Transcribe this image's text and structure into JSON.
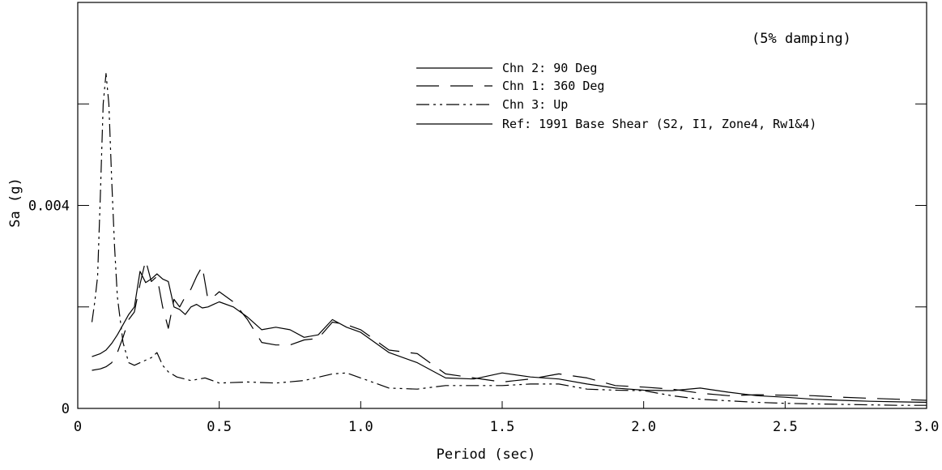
{
  "chart_data": {
    "type": "line",
    "title": "",
    "annotation": "(5% damping)",
    "xlabel": "Period (sec)",
    "ylabel": "Sa (g)",
    "xlim": [
      0,
      3.0
    ],
    "ylim": [
      0,
      0.008
    ],
    "x_ticks": [
      0,
      0.5,
      1.0,
      1.5,
      2.0,
      2.5,
      3.0
    ],
    "x_tick_labels": [
      "0",
      "0.5",
      "1.0",
      "1.5",
      "2.0",
      "2.5",
      "3.0"
    ],
    "y_ticks": [
      0,
      0.004
    ],
    "y_tick_labels": [
      "0",
      "0.004"
    ],
    "grid": false,
    "legend_position": "top-right",
    "series": [
      {
        "name": "Chn 2: 90 Deg",
        "style": "solid",
        "color": "#000000",
        "x": [
          0.05,
          0.08,
          0.1,
          0.12,
          0.14,
          0.16,
          0.18,
          0.2,
          0.22,
          0.24,
          0.26,
          0.28,
          0.3,
          0.32,
          0.34,
          0.36,
          0.38,
          0.4,
          0.42,
          0.44,
          0.46,
          0.48,
          0.5,
          0.55,
          0.6,
          0.65,
          0.7,
          0.75,
          0.8,
          0.85,
          0.9,
          0.95,
          1.0,
          1.1,
          1.2,
          1.3,
          1.4,
          1.5,
          1.6,
          1.7,
          1.8,
          1.9,
          2.0,
          2.1,
          2.2,
          2.3,
          2.4,
          2.5,
          2.6,
          2.7,
          2.8,
          2.9,
          3.0
        ],
        "y": [
          0.00102,
          0.00108,
          0.00115,
          0.00128,
          0.00145,
          0.00165,
          0.00185,
          0.002,
          0.0027,
          0.00248,
          0.00255,
          0.00265,
          0.00255,
          0.0025,
          0.002,
          0.00195,
          0.00185,
          0.002,
          0.00205,
          0.00198,
          0.002,
          0.00205,
          0.0021,
          0.002,
          0.0018,
          0.00155,
          0.0016,
          0.00155,
          0.0014,
          0.00145,
          0.00175,
          0.0016,
          0.0015,
          0.0011,
          0.0009,
          0.0006,
          0.00058,
          0.0007,
          0.00062,
          0.00058,
          0.00048,
          0.0004,
          0.00036,
          0.00035,
          0.0004,
          0.00032,
          0.00025,
          0.00022,
          0.00018,
          0.00016,
          0.00014,
          0.00013,
          0.00012
        ]
      },
      {
        "name": "Chn 1: 360 Deg",
        "style": "dashed",
        "color": "#000000",
        "x": [
          0.05,
          0.08,
          0.1,
          0.12,
          0.14,
          0.16,
          0.18,
          0.2,
          0.22,
          0.24,
          0.26,
          0.28,
          0.3,
          0.32,
          0.34,
          0.36,
          0.38,
          0.4,
          0.42,
          0.44,
          0.46,
          0.48,
          0.5,
          0.55,
          0.6,
          0.65,
          0.7,
          0.75,
          0.8,
          0.85,
          0.9,
          0.95,
          1.0,
          1.1,
          1.2,
          1.3,
          1.4,
          1.5,
          1.6,
          1.7,
          1.8,
          1.9,
          2.0,
          2.1,
          2.2,
          2.3,
          2.4,
          2.5,
          2.6,
          2.7,
          2.8,
          2.9,
          3.0
        ],
        "y": [
          0.00075,
          0.00078,
          0.00082,
          0.0009,
          0.0011,
          0.0014,
          0.00175,
          0.0019,
          0.00245,
          0.00292,
          0.0025,
          0.0026,
          0.002,
          0.00158,
          0.00215,
          0.002,
          0.0022,
          0.00235,
          0.0026,
          0.0028,
          0.00215,
          0.0022,
          0.0023,
          0.0021,
          0.00175,
          0.0013,
          0.00125,
          0.00125,
          0.00135,
          0.00138,
          0.0017,
          0.00165,
          0.00155,
          0.00115,
          0.00108,
          0.00068,
          0.0006,
          0.00052,
          0.00058,
          0.00068,
          0.0006,
          0.00045,
          0.00042,
          0.00038,
          0.0003,
          0.00025,
          0.00027,
          0.00026,
          0.00025,
          0.00022,
          0.0002,
          0.00018,
          0.00016
        ]
      },
      {
        "name": "Chn 3: Up",
        "style": "dash-dot",
        "color": "#000000",
        "x": [
          0.05,
          0.06,
          0.07,
          0.08,
          0.09,
          0.1,
          0.11,
          0.12,
          0.13,
          0.14,
          0.16,
          0.18,
          0.2,
          0.22,
          0.24,
          0.26,
          0.28,
          0.3,
          0.32,
          0.35,
          0.4,
          0.45,
          0.5,
          0.6,
          0.7,
          0.8,
          0.9,
          0.95,
          1.0,
          1.1,
          1.2,
          1.3,
          1.4,
          1.5,
          1.6,
          1.7,
          1.8,
          1.9,
          2.0,
          2.1,
          2.2,
          2.3,
          2.4,
          2.5,
          2.6,
          2.7,
          2.8,
          2.9,
          3.0
        ],
        "y": [
          0.0017,
          0.0021,
          0.0026,
          0.0042,
          0.006,
          0.0066,
          0.006,
          0.0045,
          0.0032,
          0.0022,
          0.0013,
          0.0009,
          0.00085,
          0.0009,
          0.00095,
          0.001,
          0.0011,
          0.00085,
          0.00072,
          0.00062,
          0.00055,
          0.0006,
          0.0005,
          0.00052,
          0.0005,
          0.00055,
          0.00068,
          0.0007,
          0.0006,
          0.0004,
          0.00038,
          0.00045,
          0.00045,
          0.00045,
          0.00048,
          0.00048,
          0.00038,
          0.00036,
          0.00035,
          0.00025,
          0.00018,
          0.00015,
          0.00012,
          0.0001,
          9e-05,
          8e-05,
          7e-05,
          6e-05,
          6e-05
        ]
      },
      {
        "name": "Ref: 1991 Base Shear (S2, I1, Zone4, Rw1&4)",
        "style": "solid",
        "color": "#000000",
        "x": [],
        "y": []
      }
    ]
  }
}
